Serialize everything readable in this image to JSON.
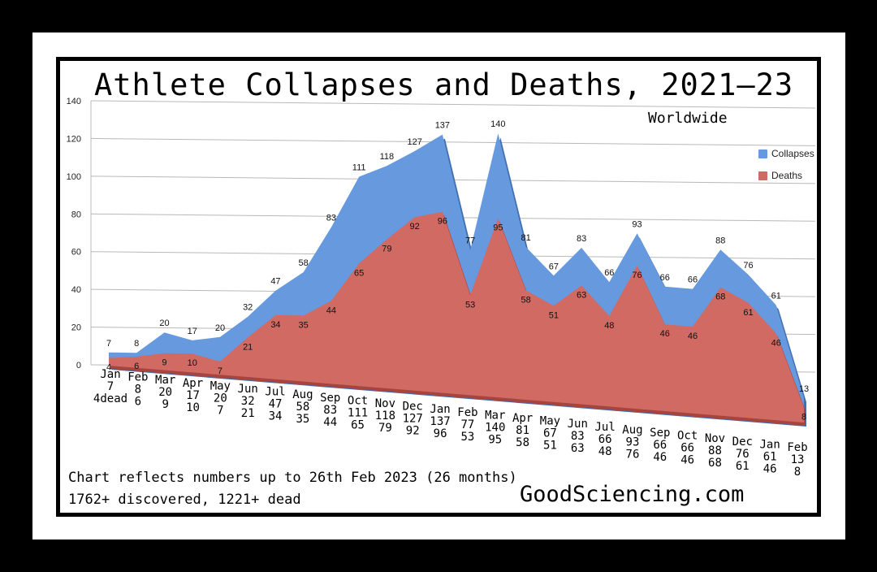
{
  "header": {
    "title": "Athlete Collapses and Deaths, 2021—23",
    "subtitle": "Worldwide"
  },
  "footer": {
    "note_1": "Chart reflects numbers up to 26th Feb 2023 (26 months)",
    "note_2": "1762+ discovered, 1221+ dead",
    "brand": "GoodSciencing.com"
  },
  "colors": {
    "collapses": "#6699dd",
    "collapses_edge": "#3f6fb0",
    "deaths": "#d06a63",
    "deaths_edge": "#a7443e",
    "grid": "#b8b8b8"
  },
  "chart_data": {
    "type": "area",
    "title": "Athlete Collapses and Deaths, 2021—23",
    "subtitle": "Worldwide",
    "ylim": [
      0,
      140
    ],
    "yticks": [
      0,
      20,
      40,
      60,
      80,
      100,
      120,
      140
    ],
    "grid": true,
    "legend": "right",
    "categories": [
      "Jan",
      "Feb",
      "Mar",
      "Apr",
      "May",
      "Jun",
      "Jul",
      "Aug",
      "Sep",
      "Oct",
      "Nov",
      "Dec",
      "Jan",
      "Feb",
      "Mar",
      "Apr",
      "May",
      "Jun",
      "Jul",
      "Aug",
      "Sep",
      "Oct",
      "Nov",
      "Dec",
      "Jan",
      "Feb"
    ],
    "series": [
      {
        "name": "Collapses",
        "values": [
          7,
          8,
          20,
          17,
          20,
          32,
          47,
          58,
          83,
          111,
          118,
          127,
          137,
          77,
          140,
          81,
          67,
          83,
          66,
          93,
          66,
          66,
          88,
          76,
          61,
          13
        ]
      },
      {
        "name": "Deaths",
        "values": [
          4,
          6,
          9,
          10,
          7,
          21,
          34,
          35,
          44,
          65,
          79,
          92,
          96,
          53,
          95,
          58,
          51,
          63,
          48,
          76,
          46,
          46,
          68,
          61,
          46,
          8
        ]
      }
    ],
    "x_label_first_death_suffix": "dead"
  }
}
